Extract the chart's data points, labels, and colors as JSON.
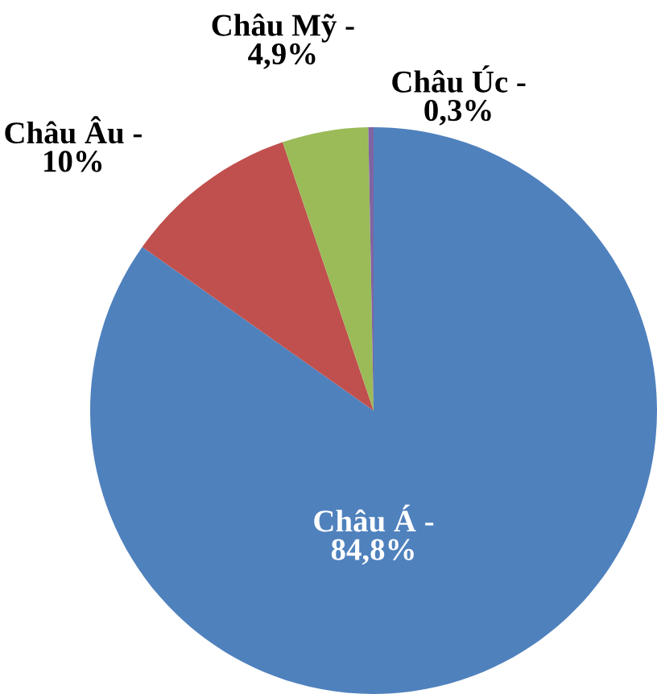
{
  "chart_data": {
    "type": "pie",
    "categories": [
      "Châu Á -",
      "Châu Âu -",
      "Châu Mỹ -",
      "Châu Úc -"
    ],
    "values": [
      84.8,
      10,
      4.9,
      0.3
    ],
    "value_labels": [
      "84,8%",
      "10%",
      "4,9%",
      "0,3%"
    ],
    "colors": [
      "#4f81bd",
      "#c0504d",
      "#9bbb59",
      "#8064a2"
    ],
    "legend": false
  }
}
